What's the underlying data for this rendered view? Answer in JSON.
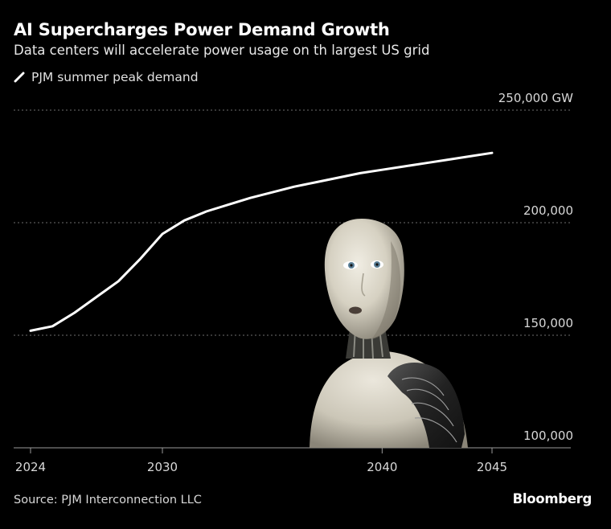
{
  "chart_data": {
    "type": "line",
    "title": "AI Supercharges Power Demand Growth",
    "subtitle": "Data centers will accelerate power usage on th largest US grid",
    "series": [
      {
        "name": "PJM summer peak demand",
        "color": "#ffffff",
        "points": [
          [
            2024,
            152000
          ],
          [
            2025,
            154000
          ],
          [
            2026,
            160000
          ],
          [
            2027,
            167000
          ],
          [
            2028,
            174000
          ],
          [
            2029,
            184000
          ],
          [
            2030,
            195000
          ],
          [
            2031,
            201000
          ],
          [
            2032,
            205000
          ],
          [
            2033,
            208000
          ],
          [
            2034,
            211000
          ],
          [
            2035,
            213500
          ],
          [
            2036,
            216000
          ],
          [
            2037,
            218000
          ],
          [
            2038,
            220000
          ],
          [
            2039,
            222000
          ],
          [
            2040,
            223500
          ],
          [
            2041,
            225000
          ],
          [
            2042,
            226500
          ],
          [
            2043,
            228000
          ],
          [
            2044,
            229500
          ],
          [
            2045,
            231000
          ]
        ]
      }
    ],
    "x_ticks": [
      2024,
      2030,
      2040,
      2045
    ],
    "x_tick_labels": [
      "2024",
      "2030",
      "2040",
      "2045"
    ],
    "y_ticks": [
      100000,
      150000,
      200000,
      250000
    ],
    "y_tick_labels": [
      "100,000",
      "150,000",
      "200,000",
      "250,000 GW"
    ],
    "xlim": [
      2024,
      2045
    ],
    "ylim": [
      100000,
      250000
    ],
    "grid": "horizontal dotted",
    "legend_position": "top-left"
  },
  "source": "Source: PJM Interconnection LLC",
  "brand": "Bloomberg",
  "colors": {
    "background": "#000000",
    "line": "#ffffff",
    "grid": "#6e6e6e",
    "text": "#d8d8d8"
  }
}
